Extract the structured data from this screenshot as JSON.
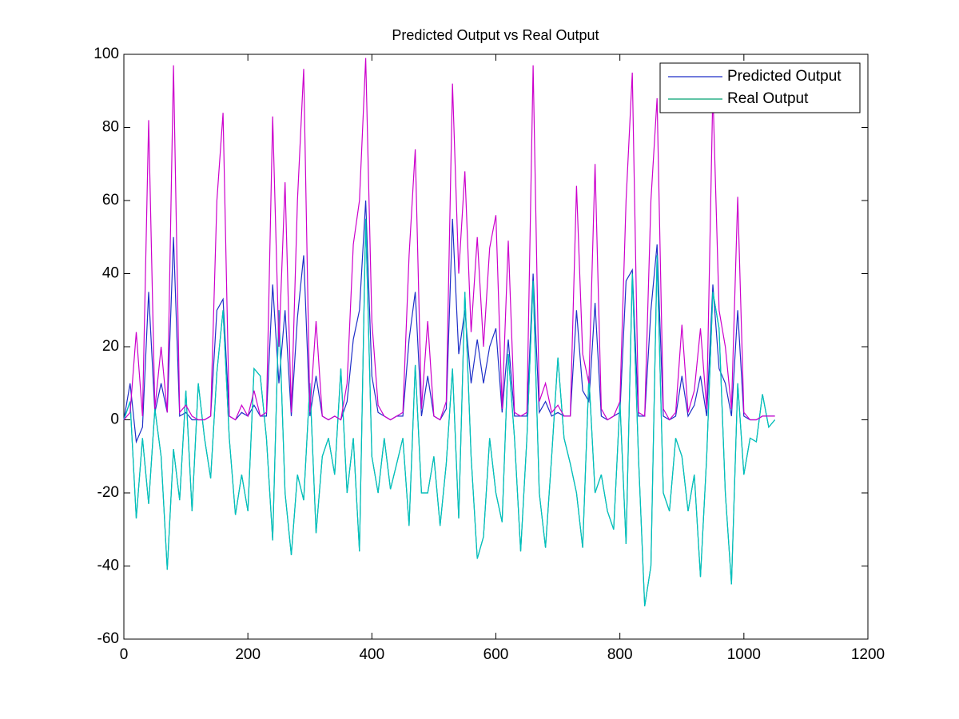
{
  "chart_data": {
    "type": "line",
    "title": "Predicted Output vs Real Output",
    "x": [
      0,
      10,
      20,
      30,
      40,
      50,
      60,
      70,
      80,
      90,
      100,
      110,
      120,
      130,
      140,
      150,
      160,
      170,
      180,
      190,
      200,
      210,
      220,
      230,
      240,
      250,
      260,
      270,
      280,
      290,
      300,
      310,
      320,
      330,
      340,
      350,
      360,
      370,
      380,
      390,
      400,
      410,
      420,
      430,
      440,
      450,
      460,
      470,
      480,
      490,
      500,
      510,
      520,
      530,
      540,
      550,
      560,
      570,
      580,
      590,
      600,
      610,
      620,
      630,
      640,
      650,
      660,
      670,
      680,
      690,
      700,
      710,
      720,
      730,
      740,
      750,
      760,
      770,
      780,
      790,
      800,
      810,
      820,
      830,
      840,
      850,
      860,
      870,
      880,
      890,
      900,
      910,
      920,
      930,
      940,
      950,
      960,
      970,
      980,
      990,
      1000,
      1010,
      1020,
      1030,
      1040,
      1050
    ],
    "series": [
      {
        "name": "Predicted Output",
        "color": "#1f2fc8",
        "values": [
          0,
          10,
          -6,
          -2,
          35,
          2,
          10,
          2,
          50,
          1,
          2,
          0,
          0,
          0,
          1,
          30,
          33,
          1,
          0,
          2,
          1,
          4,
          1,
          1,
          37,
          10,
          30,
          1,
          28,
          45,
          1,
          12,
          1,
          0,
          1,
          0,
          5,
          22,
          30,
          60,
          12,
          2,
          1,
          0,
          1,
          1,
          22,
          35,
          1,
          12,
          1,
          0,
          3,
          55,
          18,
          30,
          10,
          22,
          10,
          20,
          25,
          2,
          22,
          1,
          1,
          1,
          40,
          2,
          5,
          1,
          2,
          1,
          1,
          30,
          8,
          5,
          32,
          1,
          0,
          1,
          2,
          38,
          41,
          1,
          1,
          30,
          48,
          1,
          0,
          1,
          12,
          1,
          4,
          12,
          1,
          37,
          14,
          10,
          1,
          30,
          1,
          0,
          0,
          1,
          1,
          1
        ]
      },
      {
        "name": "Real Output",
        "color": "#00a070",
        "values": [
          0,
          5,
          -27,
          -5,
          -23,
          3,
          -10,
          -41,
          -8,
          -22,
          8,
          -25,
          10,
          -5,
          -16,
          13,
          30,
          -5,
          -26,
          -15,
          -25,
          14,
          12,
          -5,
          -33,
          30,
          -20,
          -37,
          -15,
          -22,
          10,
          -31,
          -10,
          -5,
          -15,
          14,
          -20,
          -5,
          -36,
          55,
          -10,
          -20,
          -5,
          -19,
          -12,
          -5,
          -29,
          15,
          -20,
          -20,
          -10,
          -29,
          -12,
          14,
          -27,
          35,
          -10,
          -38,
          -32,
          -5,
          -20,
          -28,
          18,
          -5,
          -36,
          -5,
          38,
          -20,
          -35,
          -10,
          17,
          -5,
          -12,
          -20,
          -35,
          12,
          -20,
          -15,
          -25,
          -30,
          5,
          -34,
          40,
          -10,
          -51,
          -40,
          45,
          -20,
          -25,
          -5,
          -10,
          -25,
          -15,
          -43,
          -10,
          35,
          25,
          -20,
          -45,
          10,
          -15,
          -5,
          -6,
          7,
          -2,
          0
        ]
      },
      {
        "color": "#00c0c0",
        "values": [
          0,
          5,
          -27,
          -5,
          -23,
          3,
          -10,
          -41,
          -8,
          -22,
          8,
          -25,
          10,
          -5,
          -16,
          13,
          30,
          -5,
          -26,
          -15,
          -25,
          14,
          12,
          -5,
          -33,
          30,
          -20,
          -37,
          -15,
          -22,
          10,
          -31,
          -10,
          -5,
          -15,
          14,
          -20,
          -5,
          -36,
          55,
          -10,
          -20,
          -5,
          -19,
          -12,
          -5,
          -29,
          15,
          -20,
          -20,
          -10,
          -29,
          -12,
          14,
          -27,
          35,
          -10,
          -38,
          -32,
          -5,
          -20,
          -28,
          18,
          -5,
          -36,
          -5,
          38,
          -20,
          -35,
          -10,
          17,
          -5,
          -12,
          -20,
          -35,
          12,
          -20,
          -15,
          -25,
          -30,
          5,
          -34,
          40,
          -10,
          -51,
          -40,
          45,
          -20,
          -25,
          -5,
          -10,
          -25,
          -15,
          -43,
          -10,
          35,
          25,
          -20,
          -45,
          10,
          -15,
          -5,
          -6,
          7,
          -2,
          0
        ]
      },
      {
        "color": "#cc00cc",
        "values": [
          0,
          2,
          24,
          1,
          82,
          3,
          20,
          2,
          97,
          2,
          4,
          1,
          0,
          0,
          1,
          60,
          84,
          1,
          0,
          4,
          1,
          8,
          1,
          2,
          83,
          20,
          65,
          2,
          60,
          96,
          2,
          27,
          1,
          0,
          1,
          0,
          10,
          48,
          60,
          99,
          27,
          4,
          1,
          0,
          1,
          2,
          45,
          74,
          3,
          27,
          1,
          0,
          5,
          92,
          40,
          68,
          24,
          50,
          20,
          47,
          56,
          3,
          49,
          2,
          1,
          2,
          97,
          5,
          10,
          2,
          4,
          1,
          1,
          64,
          18,
          10,
          70,
          3,
          0,
          1,
          5,
          60,
          95,
          2,
          1,
          60,
          88,
          3,
          0,
          2,
          26,
          2,
          8,
          25,
          3,
          90,
          30,
          20,
          3,
          61,
          2,
          0,
          0,
          1,
          1,
          1
        ]
      }
    ],
    "xlim": [
      0,
      1200
    ],
    "xticks": [
      0,
      200,
      400,
      600,
      800,
      1000,
      1200
    ],
    "ylim": [
      -60,
      100
    ],
    "yticks": [
      -60,
      -40,
      -20,
      0,
      20,
      40,
      60,
      80,
      100
    ],
    "legend": "upper-right"
  }
}
